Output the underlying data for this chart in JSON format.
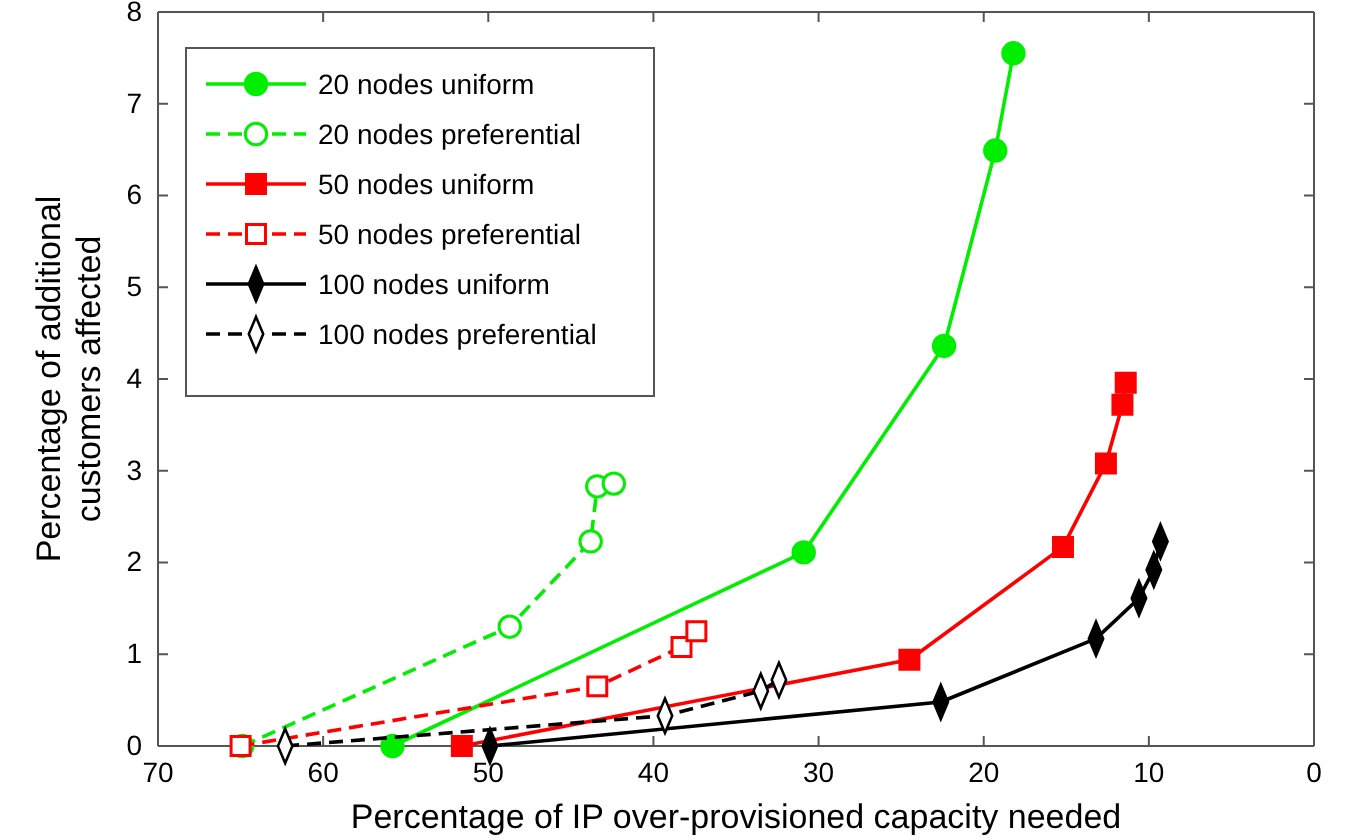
{
  "chart_data": {
    "type": "line",
    "xlabel": "Percentage of IP over-provisioned capacity needed",
    "ylabel": "Percentage of additional customers affected",
    "xlim": [
      70,
      0
    ],
    "xticks": [
      70,
      60,
      50,
      40,
      30,
      20,
      10,
      0
    ],
    "ylim": [
      0,
      8
    ],
    "yticks": [
      0,
      1,
      2,
      3,
      4,
      5,
      6,
      7,
      8
    ],
    "grid": false,
    "legend": "top left",
    "series": [
      {
        "name": "20 nodes uniform",
        "color": "#00ee00",
        "marker": "circle",
        "line_style": "solid",
        "x": [
          55.8,
          30.9,
          22.4,
          19.3,
          18.2
        ],
        "values": [
          0,
          2.11,
          4.36,
          6.49,
          7.55
        ]
      },
      {
        "name": "20 nodes preferential",
        "color": "#00ee00",
        "marker": "circle",
        "line_style": "dashed",
        "x": [
          64.9,
          48.7,
          43.8,
          43.4,
          42.4
        ],
        "values": [
          0,
          1.3,
          2.23,
          2.83,
          2.86
        ]
      },
      {
        "name": "50 nodes uniform",
        "color": "#ff0000",
        "marker": "square",
        "line_style": "solid",
        "x": [
          51.6,
          24.5,
          15.2,
          12.6,
          11.6,
          11.4
        ],
        "values": [
          0,
          0.94,
          2.17,
          3.08,
          3.72,
          3.96
        ]
      },
      {
        "name": "50 nodes preferential",
        "color": "#ff0000",
        "marker": "square",
        "line_style": "dashed",
        "x": [
          65,
          43.4,
          38.3,
          37.4
        ],
        "values": [
          0,
          0.65,
          1.08,
          1.25
        ]
      },
      {
        "name": "100 nodes uniform",
        "color": "#000000",
        "marker": "diamond",
        "line_style": "solid",
        "x": [
          49.9,
          22.6,
          13.2,
          10.6,
          9.7,
          9.3
        ],
        "values": [
          0,
          0.48,
          1.17,
          1.61,
          1.92,
          2.23
        ]
      },
      {
        "name": "100 nodes preferential",
        "color": "#000000",
        "marker": "diamond",
        "line_style": "dashed",
        "x": [
          62.3,
          39.3,
          33.5,
          32.4
        ],
        "values": [
          0,
          0.33,
          0.6,
          0.72
        ]
      }
    ]
  }
}
